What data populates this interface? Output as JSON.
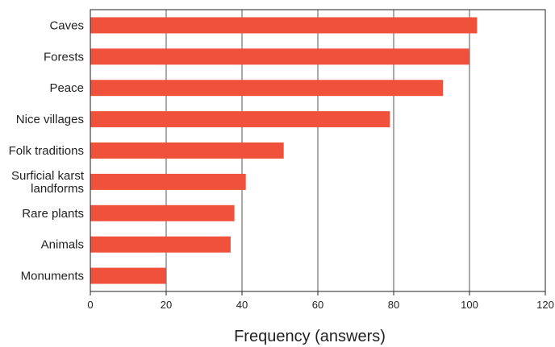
{
  "chart_data": {
    "type": "bar",
    "orientation": "horizontal",
    "categories": [
      "Caves",
      "Forests",
      "Peace",
      "Nice villages",
      "Folk traditions",
      "Surficial karst landforms",
      "Rare plants",
      "Animals",
      "Monuments"
    ],
    "category_lines": [
      [
        "Caves"
      ],
      [
        "Forests"
      ],
      [
        "Peace"
      ],
      [
        "Nice villages"
      ],
      [
        "Folk traditions"
      ],
      [
        "Surficial karst",
        "landforms"
      ],
      [
        "Rare plants"
      ],
      [
        "Animals"
      ],
      [
        "Monuments"
      ]
    ],
    "values": [
      102,
      100,
      93,
      79,
      51,
      41,
      38,
      37,
      20
    ],
    "xlabel": "Frequency (answers)",
    "xlim": [
      0,
      120
    ],
    "xticks": [
      "0",
      "20",
      "40",
      "60",
      "80",
      "100",
      "120"
    ],
    "grid": "vertical",
    "bar_color": "#f0513a"
  }
}
